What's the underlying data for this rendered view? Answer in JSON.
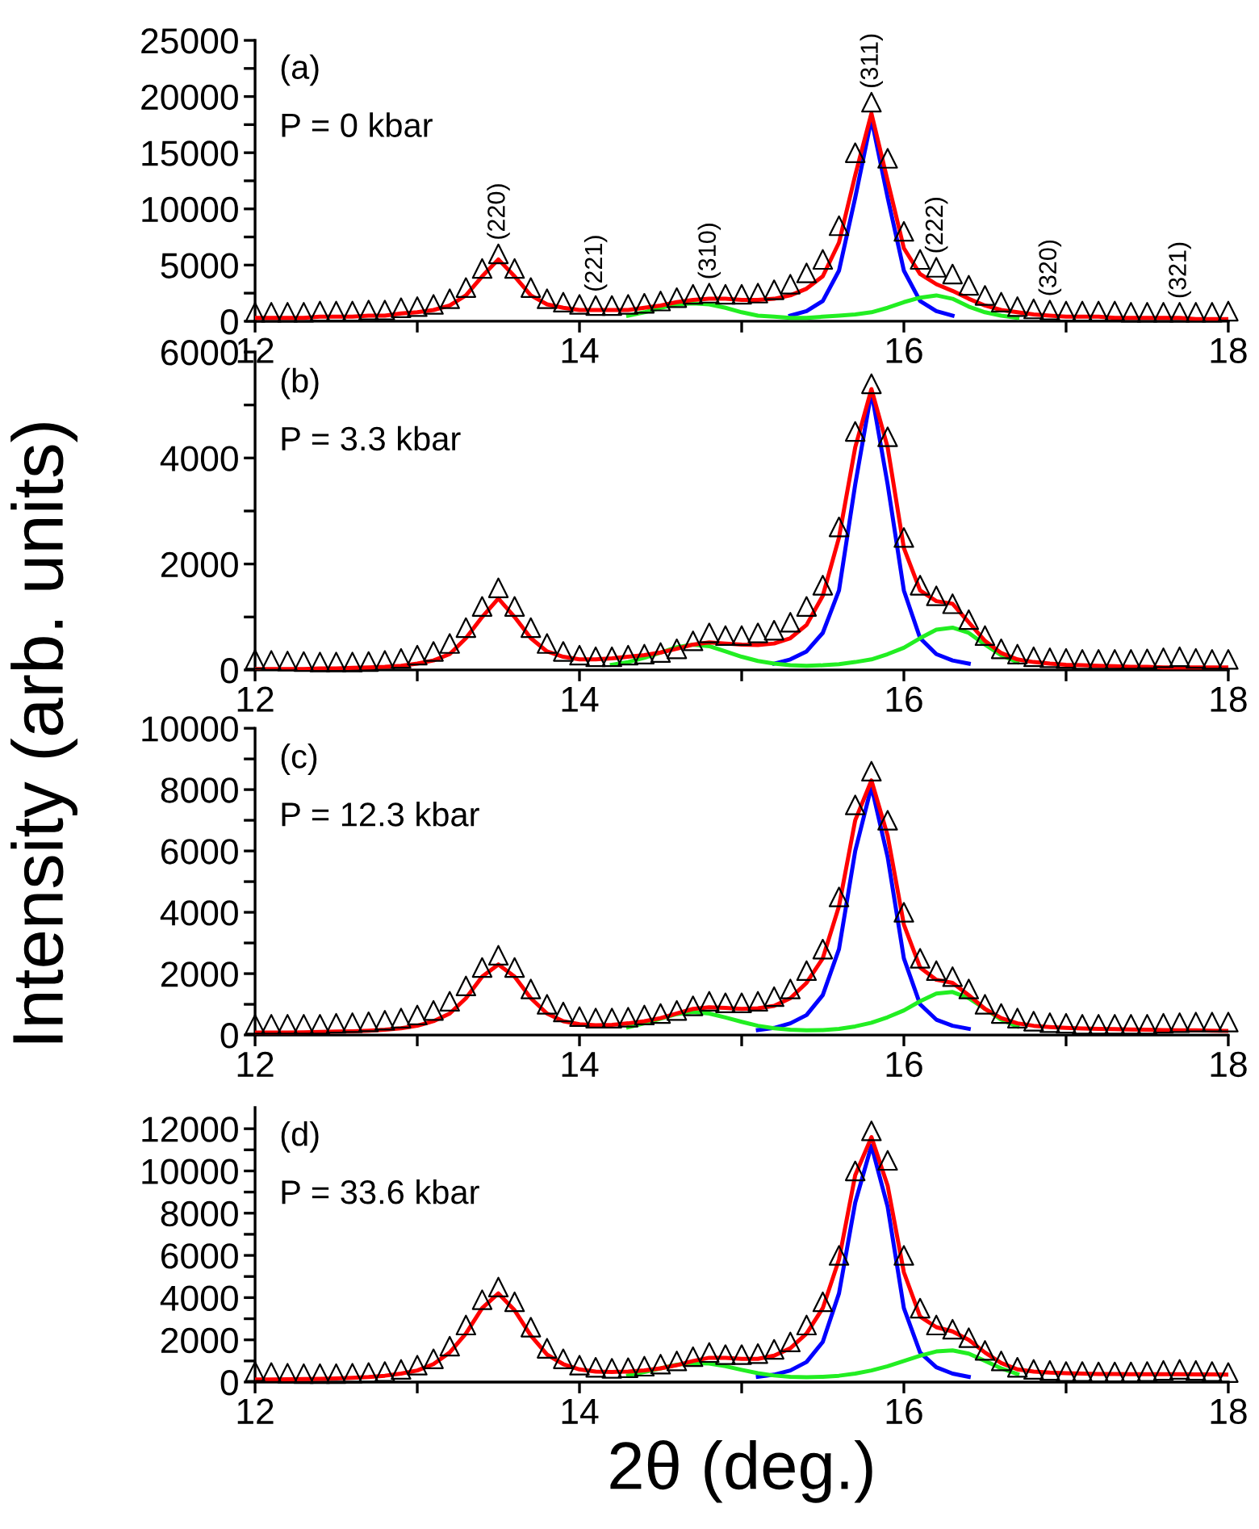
{
  "chart_data": [
    {
      "type": "line",
      "ylabel": "Intensity (arb. units)",
      "xlim": [
        12,
        18
      ],
      "xticks": [
        12,
        {
          "value": 13,
          "label": null
        },
        14,
        {
          "value": 15,
          "label": null
        },
        16,
        {
          "value": 17,
          "label": null
        },
        18
      ],
      "ylim": [
        0,
        25000
      ],
      "yticks": [
        0,
        {
          "value": 2500,
          "label": null
        },
        5000,
        {
          "value": 7500,
          "label": null
        },
        10000,
        {
          "value": 12500,
          "label": null
        },
        15000,
        {
          "value": 17500,
          "label": null
        },
        20000,
        {
          "value": 22500,
          "label": null
        },
        25000
      ],
      "grid": false,
      "annotations": [
        "(a)",
        "P = 0 kbar",
        {
          "text": "(220)",
          "x": 13.5,
          "y": 6000
        },
        {
          "text": "(221)",
          "x": 14.1,
          "y": 1400
        },
        {
          "text": "(310)",
          "x": 14.8,
          "y": 2500
        },
        {
          "text": "(311)",
          "x": 15.8,
          "y": 19500
        },
        {
          "text": "(222)",
          "x": 16.2,
          "y": 4800
        },
        {
          "text": "(320)",
          "x": 16.9,
          "y": 1000
        },
        {
          "text": "(321)",
          "x": 17.7,
          "y": 800
        }
      ],
      "x": [
        12.0,
        12.1,
        12.2,
        12.3,
        12.4,
        12.5,
        12.6,
        12.7,
        12.8,
        12.9,
        13.0,
        13.1,
        13.2,
        13.3,
        13.4,
        13.5,
        13.6,
        13.7,
        13.8,
        13.9,
        14.0,
        14.1,
        14.2,
        14.3,
        14.4,
        14.5,
        14.6,
        14.7,
        14.8,
        14.9,
        15.0,
        15.1,
        15.2,
        15.3,
        15.4,
        15.5,
        15.6,
        15.7,
        15.8,
        15.9,
        16.0,
        16.1,
        16.2,
        16.3,
        16.4,
        16.5,
        16.6,
        16.7,
        16.8,
        16.9,
        17.0,
        17.1,
        17.2,
        17.3,
        17.4,
        17.5,
        17.6,
        17.7,
        17.8,
        17.9,
        18.0
      ],
      "series": [
        {
          "type": "scatter",
          "marker": "triangle",
          "color": "#000000",
          "values": [
            800,
            800,
            800,
            800,
            900,
            900,
            900,
            1000,
            1000,
            1200,
            1300,
            1500,
            2000,
            3000,
            4700,
            6000,
            4700,
            3000,
            2000,
            1700,
            1500,
            1400,
            1400,
            1500,
            1600,
            1800,
            2100,
            2400,
            2500,
            2400,
            2400,
            2500,
            2800,
            3300,
            4300,
            5500,
            8500,
            15000,
            19500,
            14500,
            8000,
            5500,
            4800,
            4200,
            3200,
            2300,
            1700,
            1300,
            1100,
            1000,
            900,
            900,
            900,
            900,
            800,
            800,
            800,
            800,
            800,
            800,
            900
          ]
        },
        {
          "type": "line",
          "marker": "none",
          "line_style": "solid",
          "color": "#0000ff",
          "values": [
            null,
            null,
            null,
            null,
            null,
            null,
            null,
            null,
            null,
            null,
            null,
            null,
            null,
            null,
            null,
            null,
            null,
            null,
            null,
            null,
            null,
            null,
            null,
            null,
            null,
            null,
            null,
            null,
            null,
            null,
            null,
            null,
            null,
            500,
            900,
            1800,
            4500,
            11000,
            18000,
            11000,
            4500,
            1800,
            900,
            500,
            null,
            null,
            null,
            null,
            null,
            null,
            null,
            null,
            null,
            null,
            null,
            null,
            null,
            null,
            null,
            null,
            null
          ]
        },
        {
          "type": "line",
          "marker": "none",
          "line_style": "solid",
          "color": "#22ee22",
          "values": [
            null,
            null,
            null,
            null,
            null,
            null,
            null,
            null,
            null,
            null,
            null,
            null,
            null,
            null,
            null,
            null,
            null,
            null,
            null,
            null,
            null,
            null,
            null,
            500,
            800,
            1200,
            1500,
            1600,
            1500,
            1200,
            800,
            500,
            400,
            300,
            300,
            400,
            500,
            600,
            800,
            1200,
            1700,
            2100,
            2300,
            2000,
            1300,
            800,
            500,
            300,
            null,
            null,
            null,
            null,
            null,
            null,
            null,
            null,
            null,
            null,
            null,
            null,
            null
          ]
        },
        {
          "type": "line",
          "marker": "none",
          "line_style": "solid",
          "color": "#ff0000",
          "values": [
            300,
            300,
            300,
            300,
            400,
            400,
            400,
            500,
            500,
            700,
            800,
            1000,
            1400,
            2300,
            4000,
            5500,
            4000,
            2300,
            1500,
            1200,
            1000,
            1000,
            1000,
            1000,
            1200,
            1400,
            1700,
            1900,
            2000,
            2000,
            1900,
            1900,
            2000,
            2300,
            2900,
            4000,
            7000,
            13000,
            18500,
            12500,
            6500,
            4200,
            3300,
            2700,
            2000,
            1400,
            1000,
            800,
            600,
            500,
            400,
            400,
            400,
            300,
            300,
            300,
            300,
            300,
            200,
            200,
            200
          ]
        }
      ]
    },
    {
      "type": "line",
      "xlim": [
        12,
        18
      ],
      "xticks": [
        12,
        {
          "value": 13,
          "label": null
        },
        14,
        {
          "value": 15,
          "label": null
        },
        16,
        {
          "value": 17,
          "label": null
        },
        18
      ],
      "ylim": [
        0,
        6000
      ],
      "yticks": [
        0,
        {
          "value": 1000,
          "label": null
        },
        2000,
        {
          "value": 3000,
          "label": null
        },
        4000,
        {
          "value": 5000,
          "label": null
        },
        6000
      ],
      "grid": false,
      "annotations": [
        "(b)",
        "P = 3.3 kbar"
      ],
      "x": [
        12.0,
        12.1,
        12.2,
        12.3,
        12.4,
        12.5,
        12.6,
        12.7,
        12.8,
        12.9,
        13.0,
        13.1,
        13.2,
        13.3,
        13.4,
        13.5,
        13.6,
        13.7,
        13.8,
        13.9,
        14.0,
        14.1,
        14.2,
        14.3,
        14.4,
        14.5,
        14.6,
        14.7,
        14.8,
        14.9,
        15.0,
        15.1,
        15.2,
        15.3,
        15.4,
        15.5,
        15.6,
        15.7,
        15.8,
        15.9,
        16.0,
        16.1,
        16.2,
        16.3,
        16.4,
        16.5,
        16.6,
        16.7,
        16.8,
        16.9,
        17.0,
        17.1,
        17.2,
        17.3,
        17.4,
        17.5,
        17.6,
        17.7,
        17.8,
        17.9,
        18.0
      ],
      "series": [
        {
          "type": "scatter",
          "marker": "triangle",
          "color": "#000000",
          "values": [
            200,
            180,
            170,
            160,
            150,
            150,
            150,
            160,
            180,
            220,
            280,
            350,
            500,
            800,
            1200,
            1550,
            1200,
            800,
            500,
            350,
            280,
            250,
            250,
            280,
            300,
            330,
            400,
            550,
            700,
            650,
            650,
            700,
            750,
            900,
            1200,
            1600,
            2700,
            4500,
            5400,
            4400,
            2500,
            1600,
            1400,
            1250,
            950,
            650,
            400,
            300,
            250,
            230,
            220,
            200,
            200,
            200,
            200,
            210,
            230,
            250,
            220,
            200,
            200
          ]
        },
        {
          "type": "line",
          "marker": "none",
          "line_style": "solid",
          "color": "#0000ff",
          "values": [
            null,
            null,
            null,
            null,
            null,
            null,
            null,
            null,
            null,
            null,
            null,
            null,
            null,
            null,
            null,
            null,
            null,
            null,
            null,
            null,
            null,
            null,
            null,
            null,
            null,
            null,
            null,
            null,
            null,
            null,
            null,
            null,
            120,
            200,
            350,
            700,
            1500,
            3500,
            5250,
            3500,
            1500,
            600,
            300,
            180,
            120,
            null,
            null,
            null,
            null,
            null,
            null,
            null,
            null,
            null,
            null,
            null,
            null,
            null,
            null,
            null,
            null
          ]
        },
        {
          "type": "line",
          "marker": "none",
          "line_style": "solid",
          "color": "#22ee22",
          "values": [
            null,
            null,
            null,
            null,
            null,
            null,
            null,
            null,
            null,
            null,
            null,
            null,
            null,
            null,
            null,
            null,
            null,
            null,
            null,
            null,
            null,
            null,
            100,
            150,
            230,
            330,
            430,
            480,
            450,
            350,
            250,
            170,
            120,
            90,
            80,
            90,
            110,
            150,
            200,
            300,
            420,
            600,
            760,
            800,
            700,
            480,
            280,
            150,
            null,
            null,
            null,
            null,
            null,
            null,
            null,
            null,
            null,
            null,
            null,
            null,
            null
          ]
        },
        {
          "type": "line",
          "marker": "none",
          "line_style": "solid",
          "color": "#ff0000",
          "values": [
            20,
            20,
            20,
            20,
            30,
            30,
            40,
            50,
            60,
            80,
            120,
            180,
            300,
            600,
            1000,
            1350,
            1000,
            600,
            350,
            250,
            200,
            200,
            220,
            250,
            280,
            330,
            400,
            480,
            520,
            500,
            480,
            470,
            500,
            600,
            850,
            1400,
            2500,
            4200,
            5300,
            4200,
            2300,
            1500,
            1300,
            1250,
            900,
            550,
            320,
            200,
            150,
            120,
            100,
            90,
            80,
            70,
            60,
            60,
            50,
            50,
            50,
            50,
            50
          ]
        }
      ]
    },
    {
      "type": "line",
      "xlim": [
        12,
        18
      ],
      "xticks": [
        12,
        {
          "value": 13,
          "label": null
        },
        14,
        {
          "value": 15,
          "label": null
        },
        16,
        {
          "value": 17,
          "label": null
        },
        18
      ],
      "ylim": [
        0,
        10000
      ],
      "yticks": [
        0,
        {
          "value": 1000,
          "label": null
        },
        2000,
        {
          "value": 3000,
          "label": null
        },
        4000,
        {
          "value": 5000,
          "label": null
        },
        6000,
        {
          "value": 7000,
          "label": null
        },
        8000,
        {
          "value": 9000,
          "label": null
        },
        10000
      ],
      "grid": false,
      "annotations": [
        "(c)",
        "P = 12.3 kbar"
      ],
      "x": [
        12.0,
        12.1,
        12.2,
        12.3,
        12.4,
        12.5,
        12.6,
        12.7,
        12.8,
        12.9,
        13.0,
        13.1,
        13.2,
        13.3,
        13.4,
        13.5,
        13.6,
        13.7,
        13.8,
        13.9,
        14.0,
        14.1,
        14.2,
        14.3,
        14.4,
        14.5,
        14.6,
        14.7,
        14.8,
        14.9,
        15.0,
        15.1,
        15.2,
        15.3,
        15.4,
        15.5,
        15.6,
        15.7,
        15.8,
        15.9,
        16.0,
        16.1,
        16.2,
        16.3,
        16.4,
        16.5,
        16.6,
        16.7,
        16.8,
        16.9,
        17.0,
        17.1,
        17.2,
        17.3,
        17.4,
        17.5,
        17.6,
        17.7,
        17.8,
        17.9,
        18.0
      ],
      "series": [
        {
          "type": "scatter",
          "marker": "triangle",
          "color": "#000000",
          "values": [
            350,
            350,
            350,
            350,
            350,
            380,
            400,
            430,
            480,
            550,
            650,
            800,
            1100,
            1600,
            2200,
            2600,
            2200,
            1500,
            1000,
            750,
            600,
            550,
            550,
            580,
            650,
            700,
            800,
            950,
            1100,
            1050,
            1050,
            1100,
            1250,
            1500,
            2100,
            2800,
            4500,
            7500,
            8600,
            7000,
            4000,
            2500,
            2100,
            1900,
            1500,
            1000,
            700,
            550,
            450,
            400,
            380,
            350,
            350,
            350,
            350,
            350,
            380,
            400,
            420,
            420,
            420
          ]
        },
        {
          "type": "line",
          "marker": "none",
          "line_style": "solid",
          "color": "#0000ff",
          "values": [
            null,
            null,
            null,
            null,
            null,
            null,
            null,
            null,
            null,
            null,
            null,
            null,
            null,
            null,
            null,
            null,
            null,
            null,
            null,
            null,
            null,
            null,
            null,
            null,
            null,
            null,
            null,
            null,
            null,
            null,
            null,
            160,
            230,
            380,
            650,
            1300,
            2800,
            6000,
            8100,
            5800,
            2500,
            1000,
            500,
            300,
            200,
            null,
            null,
            null,
            null,
            null,
            null,
            null,
            null,
            null,
            null,
            null,
            null,
            null,
            null,
            null,
            null
          ]
        },
        {
          "type": "line",
          "marker": "none",
          "line_style": "solid",
          "color": "#22ee22",
          "values": [
            null,
            null,
            null,
            null,
            null,
            null,
            null,
            null,
            null,
            null,
            null,
            null,
            null,
            null,
            null,
            null,
            null,
            null,
            null,
            null,
            null,
            null,
            null,
            250,
            380,
            530,
            680,
            750,
            700,
            570,
            430,
            300,
            220,
            170,
            150,
            160,
            200,
            280,
            400,
            580,
            800,
            1100,
            1350,
            1400,
            1200,
            850,
            500,
            280,
            null,
            null,
            null,
            null,
            null,
            null,
            null,
            null,
            null,
            null,
            null,
            null,
            null
          ]
        },
        {
          "type": "line",
          "marker": "none",
          "line_style": "solid",
          "color": "#ff0000",
          "values": [
            80,
            80,
            80,
            90,
            100,
            110,
            120,
            140,
            170,
            220,
            300,
            450,
            700,
            1200,
            1900,
            2300,
            1900,
            1200,
            700,
            450,
            350,
            320,
            330,
            380,
            450,
            550,
            700,
            850,
            900,
            880,
            850,
            870,
            950,
            1200,
            1700,
            2500,
            4200,
            7000,
            8300,
            6500,
            3600,
            2200,
            1800,
            1700,
            1300,
            850,
            550,
            380,
            300,
            260,
            230,
            210,
            200,
            190,
            180,
            170,
            160,
            150,
            150,
            140,
            130
          ]
        }
      ]
    },
    {
      "type": "line",
      "xlabel": "2θ (deg.)",
      "xlim": [
        12,
        18
      ],
      "xticks": [
        12,
        {
          "value": 13,
          "label": null
        },
        14,
        {
          "value": 15,
          "label": null
        },
        16,
        {
          "value": 17,
          "label": null
        },
        18
      ],
      "ylim": [
        0,
        13000
      ],
      "yticks": [
        0,
        {
          "value": 1000,
          "label": null
        },
        2000,
        {
          "value": 3000,
          "label": null
        },
        4000,
        {
          "value": 5000,
          "label": null
        },
        6000,
        {
          "value": 7000,
          "label": null
        },
        8000,
        {
          "value": 9000,
          "label": null
        },
        10000,
        {
          "value": 11000,
          "label": null
        },
        12000
      ],
      "grid": false,
      "annotations": [
        "(d)",
        "P = 33.6 kbar"
      ],
      "x": [
        12.0,
        12.1,
        12.2,
        12.3,
        12.4,
        12.5,
        12.6,
        12.7,
        12.8,
        12.9,
        13.0,
        13.1,
        13.2,
        13.3,
        13.4,
        13.5,
        13.6,
        13.7,
        13.8,
        13.9,
        14.0,
        14.1,
        14.2,
        14.3,
        14.4,
        14.5,
        14.6,
        14.7,
        14.8,
        14.9,
        15.0,
        15.1,
        15.2,
        15.3,
        15.4,
        15.5,
        15.6,
        15.7,
        15.8,
        15.9,
        16.0,
        16.1,
        16.2,
        16.3,
        16.4,
        16.5,
        16.6,
        16.7,
        16.8,
        16.9,
        17.0,
        17.1,
        17.2,
        17.3,
        17.4,
        17.5,
        17.6,
        17.7,
        17.8,
        17.9,
        18.0
      ],
      "series": [
        {
          "type": "scatter",
          "marker": "triangle",
          "color": "#000000",
          "values": [
            500,
            450,
            420,
            400,
            400,
            400,
            420,
            450,
            500,
            600,
            800,
            1100,
            1700,
            2700,
            3900,
            4500,
            3800,
            2600,
            1600,
            1100,
            800,
            700,
            650,
            680,
            750,
            850,
            1000,
            1200,
            1400,
            1300,
            1300,
            1350,
            1550,
            1900,
            2700,
            3800,
            6000,
            10000,
            11900,
            10500,
            6000,
            3500,
            2700,
            2500,
            2100,
            1500,
            1000,
            700,
            600,
            550,
            500,
            500,
            480,
            480,
            480,
            500,
            550,
            600,
            550,
            500,
            450
          ]
        },
        {
          "type": "line",
          "marker": "none",
          "line_style": "solid",
          "color": "#0000ff",
          "values": [
            null,
            null,
            null,
            null,
            null,
            null,
            null,
            null,
            null,
            null,
            null,
            null,
            null,
            null,
            null,
            null,
            null,
            null,
            null,
            null,
            null,
            null,
            null,
            null,
            null,
            null,
            null,
            null,
            null,
            null,
            null,
            250,
            350,
            550,
            950,
            1900,
            4200,
            8500,
            11200,
            8300,
            3500,
            1400,
            700,
            400,
            250,
            null,
            null,
            null,
            null,
            null,
            null,
            null,
            null,
            null,
            null,
            null,
            null,
            null,
            null,
            null,
            null
          ]
        },
        {
          "type": "line",
          "marker": "none",
          "line_style": "solid",
          "color": "#22ee22",
          "values": [
            null,
            null,
            null,
            null,
            null,
            null,
            null,
            null,
            null,
            null,
            null,
            null,
            null,
            null,
            null,
            null,
            null,
            null,
            null,
            null,
            null,
            null,
            null,
            320,
            480,
            650,
            820,
            900,
            880,
            750,
            580,
            420,
            310,
            250,
            230,
            250,
            300,
            400,
            550,
            750,
            1000,
            1250,
            1450,
            1500,
            1350,
            1000,
            650,
            380,
            null,
            null,
            null,
            null,
            null,
            null,
            null,
            null,
            null,
            null,
            null,
            null,
            null
          ]
        },
        {
          "type": "line",
          "marker": "none",
          "line_style": "solid",
          "color": "#ff0000",
          "values": [
            120,
            120,
            130,
            140,
            150,
            170,
            200,
            240,
            300,
            400,
            550,
            850,
            1400,
            2300,
            3500,
            4200,
            3400,
            2200,
            1300,
            850,
            600,
            500,
            480,
            500,
            550,
            650,
            800,
            1000,
            1150,
            1150,
            1100,
            1100,
            1250,
            1600,
            2300,
            3500,
            5800,
            9800,
            11600,
            9300,
            5200,
            3100,
            2600,
            2400,
            2000,
            1400,
            900,
            600,
            500,
            450,
            420,
            400,
            380,
            380,
            370,
            370,
            370,
            370,
            360,
            360,
            350
          ]
        }
      ]
    }
  ]
}
